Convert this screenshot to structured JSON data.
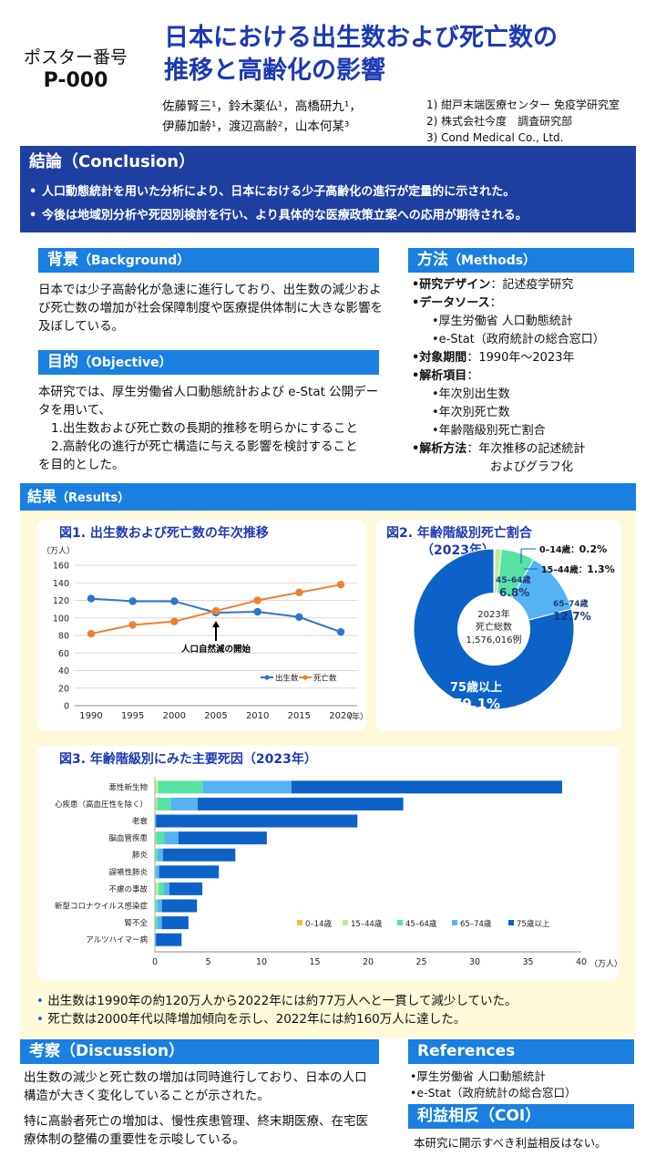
{
  "header": {
    "poster_label": "ポスター番号",
    "poster_id": "P-000",
    "title_line1": "日本における出生数および死亡数の",
    "title_line2": "推移と高齢化の影響",
    "authors_line1": "佐藤腎三¹，鈴木薬仏¹，高橋研九¹，",
    "authors_line2": "伊藤加齢¹，渡辺高齢²，山本何某³",
    "affiliations": [
      "1) 紺戸末端医療センター 免疫学研究室",
      "2) 株式会社今度　調査研究部",
      "3) Cond Medical Co., Ltd."
    ]
  },
  "conclusion": {
    "title": "結論（Conclusion）",
    "items": [
      "人口動態統計を用いた分析により、日本における少子高齢化の進行が定量的に示された。",
      "今後は地域別分析や死因別検討を行い、より具体的な医療政策立案への応用が期待される。"
    ]
  },
  "background": {
    "title": "背景",
    "title_en": "（Background）",
    "text": "日本では少子高齢化が急速に進行しており、出生数の減少および死亡数の増加が社会保障制度や医療提供体制に大きな影響を及ぼしている。"
  },
  "objective": {
    "title": "目的",
    "title_en": "（Objective）",
    "lines": [
      "本研究では、厚生労働省人口動態統計および e-Stat 公開データを用いて、",
      "1.出生数および死亡数の長期的推移を明らかにすること",
      "2.高齢化の進行が死亡構造に与える影響を検討すること",
      "を目的とした。"
    ]
  },
  "methods": {
    "title": "方法",
    "title_en": "（Methods）",
    "design_label": "•研究デザイン",
    "design_value": "：記述疫学研究",
    "source_label": "•データソース",
    "source_colon": "：",
    "sources": [
      "•厚生労働省 人口動態統計",
      "•e-Stat（政府統計の総合窓口）"
    ],
    "period_label": "•対象期間",
    "period_value": "：1990年～2023年",
    "items_label": "•解析項目",
    "items_colon": "：",
    "items": [
      "•年次別出生数",
      "•年次別死亡数",
      "•年齢階級別死亡割合"
    ],
    "analysis_label": "•解析方法",
    "analysis_value1": "：年次推移の記述統計",
    "analysis_value2": "およびグラフ化"
  },
  "results": {
    "title": "結果",
    "title_en": "（Results）",
    "bullets": [
      "出生数は1990年の約120万人から2022年には約77万人へと一貫して減少していた。",
      "死亡数は2000年代以降増加傾向を示し、2022年には約160万人に達した。"
    ]
  },
  "chart_data": [
    {
      "type": "line",
      "title": "図1. 出生数および死亡数の年次推移",
      "ylabel": "（万人）",
      "xlabel": "（年）",
      "x": [
        1990,
        1995,
        2000,
        2005,
        2010,
        2015,
        2020
      ],
      "ylim": [
        0,
        160
      ],
      "yticks": [
        0,
        20,
        40,
        60,
        80,
        100,
        120,
        140,
        160
      ],
      "series": [
        {
          "name": "出生数",
          "color": "#2e75c8",
          "values": [
            122,
            119,
            119,
            106,
            107,
            101,
            84
          ]
        },
        {
          "name": "死亡数",
          "color": "#f08030",
          "values": [
            82,
            92,
            96,
            108,
            120,
            129,
            138
          ]
        }
      ],
      "annotation": "人口自然減の開始",
      "annotation_x": 2005,
      "grid": true,
      "legend": "bottom-right"
    },
    {
      "type": "pie",
      "title_line1": "図2. 年齢階級別死亡割合",
      "title_line2": "（2023年）",
      "center_line1": "2023年",
      "center_line2": "死亡総数",
      "center_line3": "1,576,016例",
      "slices": [
        {
          "label": "0–14歳",
          "value": 0.2,
          "pct": "0.2%",
          "color": "#f6c02a"
        },
        {
          "label": "15–44歳",
          "value": 1.3,
          "pct": "1.3%",
          "color": "#b9ef9a"
        },
        {
          "label": "45–64歳",
          "value": 6.8,
          "pct": "6.8%",
          "color": "#58e3a4"
        },
        {
          "label": "65–74歳",
          "value": 12.7,
          "pct": "12.7%",
          "color": "#56b3f3"
        },
        {
          "label": "75歳以上",
          "value": 79.1,
          "pct": "79.1%",
          "color": "#0c62c7"
        }
      ]
    },
    {
      "type": "bar",
      "orientation": "horizontal",
      "stacked": true,
      "title": "図3. 年齢階級別にみた主要死因（2023年）",
      "xlabel": "（万人）",
      "xlim": [
        0,
        40
      ],
      "xticks": [
        0,
        5,
        10,
        15,
        20,
        25,
        30,
        35,
        40
      ],
      "categories": [
        "悪性新生物",
        "心疾患（高血圧性を除く）",
        "老衰",
        "脳血管疾患",
        "肺炎",
        "誤嚥性肺炎",
        "不慮の事故",
        "新型コロナウイルス感染症",
        "腎不全",
        "アルツハイマー病"
      ],
      "series": [
        {
          "name": "0–14歳",
          "color": "#f6c02a",
          "values": [
            0.0,
            0.0,
            0.0,
            0.0,
            0.0,
            0.0,
            0.05,
            0.0,
            0.0,
            0.0
          ]
        },
        {
          "name": "15–44歳",
          "color": "#b9ef9a",
          "values": [
            0.3,
            0.2,
            0.0,
            0.1,
            0.05,
            0.0,
            0.3,
            0.05,
            0.05,
            0.0
          ]
        },
        {
          "name": "45–64歳",
          "color": "#58e3a4",
          "values": [
            4.2,
            1.3,
            0.0,
            0.8,
            0.2,
            0.1,
            0.5,
            0.2,
            0.2,
            0.0
          ]
        },
        {
          "name": "65–74歳",
          "color": "#56b3f3",
          "values": [
            8.3,
            2.5,
            0.1,
            1.3,
            0.5,
            0.3,
            0.5,
            0.4,
            0.4,
            0.1
          ]
        },
        {
          "name": "75歳以上",
          "color": "#0c62c7",
          "values": [
            25.4,
            19.3,
            18.9,
            8.3,
            6.8,
            5.6,
            3.1,
            3.3,
            2.5,
            2.4
          ]
        }
      ],
      "legend": "bottom-right"
    }
  ],
  "discussion": {
    "title": "考察（Discussion）",
    "paragraphs": [
      "出生数の減少と死亡数の増加は同時進行しており、日本の人口構造が大きく変化していることが示された。",
      "特に高齢者死亡の増加は、慢性疾患管理、終末期医療、在宅医療体制の整備の重要性を示唆している。"
    ]
  },
  "references": {
    "title": "References",
    "items": [
      "•厚生労働省 人口動態統計",
      "•e-Stat（政府統計の総合窓口）"
    ]
  },
  "coi": {
    "title": "利益相反（COI）",
    "text": "本研究に開示すべき利益相反はない。"
  }
}
